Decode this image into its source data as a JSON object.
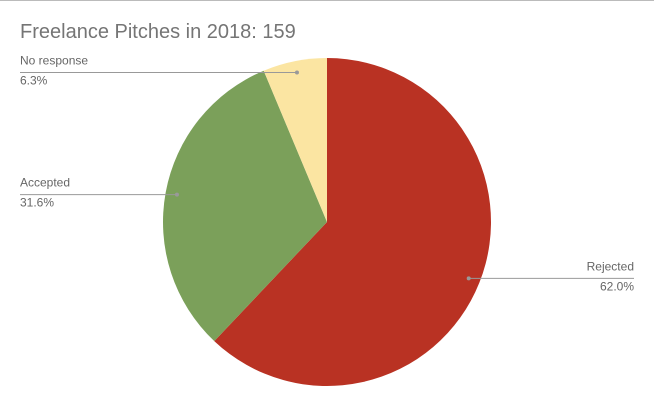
{
  "chart_data": {
    "type": "pie",
    "title": "Freelance Pitches in 2018: 159",
    "categories": [
      "Rejected",
      "Accepted",
      "No response"
    ],
    "values": [
      62.0,
      31.6,
      6.3
    ],
    "value_labels": [
      "62.0%",
      "31.6%",
      "6.3%"
    ],
    "colors": [
      "#b93223",
      "#7ba05a",
      "#fbe5a2"
    ]
  }
}
